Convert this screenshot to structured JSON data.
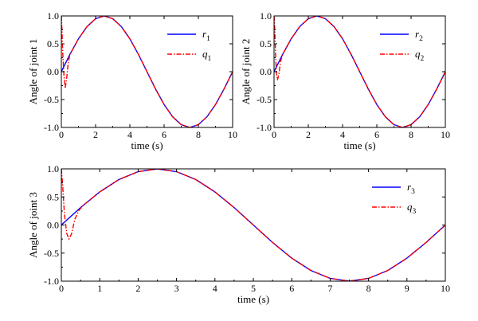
{
  "chart_data": [
    {
      "type": "line",
      "panel": "top-left",
      "xlabel": "time (s)",
      "ylabel": "Angle of joint 1",
      "xlim": [
        0,
        10
      ],
      "ylim": [
        -1.0,
        1.0
      ],
      "xticks": [
        "0",
        "2",
        "4",
        "6",
        "8",
        "10"
      ],
      "yticks": [
        "-1.0",
        "-0.5",
        "0.0",
        "0.5",
        "1.0"
      ],
      "legend_position": "top-right",
      "series": [
        {
          "name": "r",
          "subscript": "1",
          "color": "#0000ff",
          "style": "solid",
          "x": [
            0,
            0.5,
            1,
            1.5,
            2,
            2.5,
            3,
            3.5,
            4,
            4.5,
            5,
            5.5,
            6,
            6.5,
            7,
            7.5,
            8,
            8.5,
            9,
            9.5,
            10
          ],
          "y": [
            0,
            0.31,
            0.59,
            0.81,
            0.95,
            1.0,
            0.95,
            0.81,
            0.59,
            0.31,
            0,
            -0.31,
            -0.59,
            -0.81,
            -0.95,
            -1.0,
            -0.95,
            -0.81,
            -0.59,
            -0.31,
            0
          ]
        },
        {
          "name": "q",
          "subscript": "1",
          "color": "#ff0000",
          "style": "dashdot",
          "x": [
            0,
            0.03,
            0.08,
            0.15,
            0.22,
            0.3,
            0.4,
            0.5,
            1,
            1.5,
            2,
            2.5,
            3,
            3.5,
            4,
            4.5,
            5,
            5.5,
            6,
            6.5,
            7,
            7.5,
            8,
            8.5,
            9,
            9.5,
            10
          ],
          "y": [
            1.0,
            0.8,
            0.35,
            -0.05,
            -0.3,
            -0.15,
            0.15,
            0.31,
            0.59,
            0.81,
            0.95,
            1.0,
            0.95,
            0.81,
            0.59,
            0.31,
            0,
            -0.31,
            -0.59,
            -0.81,
            -0.95,
            -1.0,
            -0.95,
            -0.81,
            -0.59,
            -0.31,
            0
          ]
        }
      ]
    },
    {
      "type": "line",
      "panel": "top-right",
      "xlabel": "time (s)",
      "ylabel": "Angle of joint 2",
      "xlim": [
        0,
        10
      ],
      "ylim": [
        -1.0,
        1.0
      ],
      "xticks": [
        "0",
        "2",
        "4",
        "6",
        "8",
        "10"
      ],
      "yticks": [
        "-1.0",
        "-0.5",
        "0.0",
        "0.5",
        "1.0"
      ],
      "legend_position": "top-right",
      "series": [
        {
          "name": "r",
          "subscript": "2",
          "color": "#0000ff",
          "style": "solid",
          "x": [
            0,
            0.5,
            1,
            1.5,
            2,
            2.5,
            3,
            3.5,
            4,
            4.5,
            5,
            5.5,
            6,
            6.5,
            7,
            7.5,
            8,
            8.5,
            9,
            9.5,
            10
          ],
          "y": [
            0,
            0.31,
            0.59,
            0.81,
            0.95,
            1.0,
            0.95,
            0.81,
            0.59,
            0.31,
            0,
            -0.31,
            -0.59,
            -0.81,
            -0.95,
            -1.0,
            -0.95,
            -0.81,
            -0.59,
            -0.31,
            0
          ]
        },
        {
          "name": "q",
          "subscript": "2",
          "color": "#ff0000",
          "style": "dashdot",
          "x": [
            0,
            0.03,
            0.08,
            0.13,
            0.2,
            0.28,
            0.38,
            0.5,
            1,
            1.5,
            2,
            2.5,
            3,
            3.5,
            4,
            4.5,
            5,
            5.5,
            6,
            6.5,
            7,
            7.5,
            8,
            8.5,
            9,
            9.5,
            10
          ],
          "y": [
            1.0,
            0.85,
            0.4,
            0.0,
            -0.15,
            -0.05,
            0.18,
            0.31,
            0.59,
            0.81,
            0.95,
            1.0,
            0.95,
            0.81,
            0.59,
            0.31,
            0,
            -0.31,
            -0.59,
            -0.81,
            -0.95,
            -1.0,
            -0.95,
            -0.81,
            -0.59,
            -0.31,
            0
          ]
        }
      ]
    },
    {
      "type": "line",
      "panel": "bottom",
      "xlabel": "time (s)",
      "ylabel": "Angle of joint 3",
      "xlim": [
        0,
        10
      ],
      "ylim": [
        -1.0,
        1.0
      ],
      "xticks": [
        "0",
        "1",
        "2",
        "3",
        "4",
        "5",
        "6",
        "7",
        "8",
        "9",
        "10"
      ],
      "yticks": [
        "-1.0",
        "-0.5",
        "0.0",
        "0.5",
        "1.0"
      ],
      "legend_position": "top-right",
      "series": [
        {
          "name": "r",
          "subscript": "3",
          "color": "#0000ff",
          "style": "solid",
          "x": [
            0,
            0.5,
            1,
            1.5,
            2,
            2.5,
            3,
            3.5,
            4,
            4.5,
            5,
            5.5,
            6,
            6.5,
            7,
            7.5,
            8,
            8.5,
            9,
            9.5,
            10
          ],
          "y": [
            0,
            0.31,
            0.59,
            0.81,
            0.95,
            1.0,
            0.95,
            0.81,
            0.59,
            0.31,
            0,
            -0.31,
            -0.59,
            -0.81,
            -0.95,
            -1.0,
            -0.95,
            -0.81,
            -0.59,
            -0.31,
            0
          ]
        },
        {
          "name": "q",
          "subscript": "3",
          "color": "#ff0000",
          "style": "dashdot",
          "x": [
            0,
            0.03,
            0.08,
            0.14,
            0.2,
            0.27,
            0.35,
            0.45,
            0.55,
            1,
            1.5,
            2,
            2.5,
            3,
            3.5,
            4,
            4.5,
            5,
            5.5,
            6,
            6.5,
            7,
            7.5,
            8,
            8.5,
            9,
            9.5,
            10
          ],
          "y": [
            1.0,
            0.75,
            0.2,
            -0.15,
            -0.25,
            -0.15,
            0.1,
            0.25,
            0.34,
            0.59,
            0.81,
            0.95,
            1.0,
            0.95,
            0.81,
            0.59,
            0.31,
            0,
            -0.31,
            -0.59,
            -0.81,
            -0.95,
            -1.0,
            -0.95,
            -0.81,
            -0.59,
            -0.31,
            0
          ]
        }
      ]
    }
  ]
}
